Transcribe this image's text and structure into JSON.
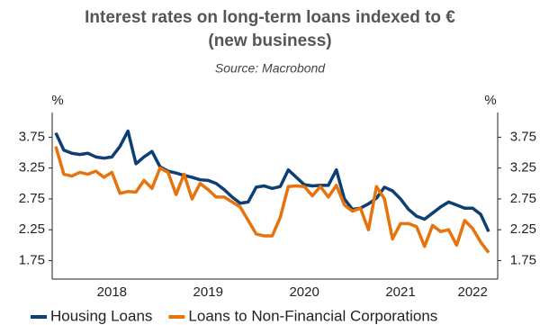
{
  "chart_data": {
    "type": "line",
    "title": [
      "Interest rates on long-term loans indexed to €",
      "(new business)"
    ],
    "subtitle": "Source: Macrobond",
    "ylabel": "%",
    "y2label": "%",
    "categories": [
      null,
      null,
      null,
      null,
      null,
      null,
      null,
      "2018",
      null,
      null,
      null,
      null,
      null,
      null,
      null,
      null,
      null,
      null,
      null,
      "2019",
      null,
      null,
      null,
      null,
      null,
      null,
      null,
      null,
      null,
      null,
      null,
      "2020",
      null,
      null,
      null,
      null,
      null,
      null,
      null,
      null,
      null,
      null,
      null,
      "2021",
      null,
      null,
      null,
      null,
      null,
      null,
      null,
      null,
      "2022",
      null,
      null
    ],
    "series": [
      {
        "name": "Housing Loans",
        "color": "#0d3f73",
        "values": [
          3.82,
          3.54,
          3.49,
          3.47,
          3.49,
          3.43,
          3.41,
          3.43,
          3.6,
          3.85,
          3.32,
          3.43,
          3.52,
          3.27,
          3.2,
          3.17,
          3.13,
          3.1,
          3.06,
          3.05,
          3.0,
          2.9,
          2.78,
          2.68,
          2.7,
          2.94,
          2.96,
          2.92,
          2.95,
          3.22,
          3.1,
          2.98,
          2.96,
          2.97,
          2.97,
          3.22,
          2.75,
          2.58,
          2.6,
          2.67,
          2.76,
          2.94,
          2.88,
          2.75,
          2.58,
          2.47,
          2.42,
          2.52,
          2.62,
          2.7,
          2.65,
          2.6,
          2.6,
          2.5,
          2.22
        ]
      },
      {
        "name": "Loans to Non-Financial Corporations",
        "color": "#e8720c",
        "values": [
          3.6,
          3.15,
          3.12,
          3.18,
          3.15,
          3.2,
          3.1,
          3.18,
          2.84,
          2.87,
          2.86,
          3.05,
          2.92,
          3.25,
          3.18,
          2.82,
          3.15,
          2.75,
          3.0,
          2.9,
          2.78,
          2.78,
          2.7,
          2.62,
          2.4,
          2.18,
          2.15,
          2.15,
          2.45,
          2.95,
          2.96,
          2.95,
          2.8,
          2.95,
          2.78,
          2.97,
          2.65,
          2.55,
          2.6,
          2.25,
          2.95,
          2.75,
          2.1,
          2.35,
          2.35,
          2.3,
          1.98,
          2.32,
          2.22,
          2.25,
          2.0,
          2.4,
          2.27,
          2.05,
          1.88
        ]
      }
    ],
    "ylim": [
      1.45,
      4.15
    ],
    "yticks": [
      1.75,
      2.25,
      2.75,
      3.25,
      3.75
    ],
    "y2lim": [
      1.45,
      4.15
    ],
    "y2ticks": [
      1.75,
      2.25,
      2.75,
      3.25,
      3.75
    ],
    "grid": false,
    "legend": "bottom"
  }
}
